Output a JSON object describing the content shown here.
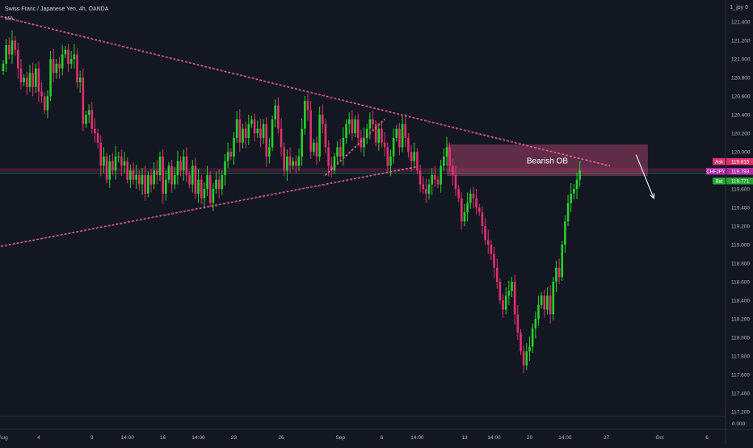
{
  "header": {
    "symbol_line": "Swiss Franc / Japanese Yen, 4h, OANDA",
    "indicator": "MA",
    "top_right": "1_jpy 0"
  },
  "colors": {
    "background": "#131722",
    "up": "#26d12a",
    "down": "#e0306e",
    "trendline": "#f06292",
    "zone": "#7a3556",
    "axis_text": "#b2b5be",
    "ask": "#e0306e",
    "symbol_badge": "#b02aa8",
    "bid": "#26a334"
  },
  "chart_data": {
    "type": "candlestick",
    "y_axis_ticks": [
      "121.400",
      "121.200",
      "121.000",
      "120.800",
      "120.600",
      "120.400",
      "120.200",
      "120.000",
      "119.800",
      "119.600",
      "119.400",
      "119.200",
      "119.000",
      "118.800",
      "118.600",
      "118.400",
      "118.200",
      "118.000",
      "117.800",
      "117.600",
      "117.400",
      "117.200"
    ],
    "y_range": [
      117.2,
      121.55
    ],
    "zero_label": "0.000",
    "x_axis_ticks": [
      {
        "label": "Aug",
        "bar": 0
      },
      {
        "label": "4",
        "bar": 12
      },
      {
        "label": "9",
        "bar": 30
      },
      {
        "label": "14:00",
        "bar": 42
      },
      {
        "label": "16",
        "bar": 54
      },
      {
        "label": "14:00",
        "bar": 66
      },
      {
        "label": "23",
        "bar": 78
      },
      {
        "label": "26",
        "bar": 94
      },
      {
        "label": "Sep",
        "bar": 114
      },
      {
        "label": "6",
        "bar": 128
      },
      {
        "label": "14:00",
        "bar": 140
      },
      {
        "label": "13",
        "bar": 156
      },
      {
        "label": "14:00",
        "bar": 166
      },
      {
        "label": "20",
        "bar": 178
      },
      {
        "label": "14:00",
        "bar": 190
      },
      {
        "label": "27",
        "bar": 204
      },
      {
        "label": "Oct",
        "bar": 222
      },
      {
        "label": "6",
        "bar": 238
      }
    ],
    "closes": [
      120.95,
      121.15,
      121.05,
      121.2,
      121.1,
      120.9,
      120.75,
      120.8,
      120.7,
      120.85,
      120.7,
      120.9,
      120.65,
      120.6,
      120.45,
      120.6,
      121.0,
      120.85,
      120.95,
      120.9,
      121.05,
      121.1,
      120.95,
      121.0,
      121.05,
      120.75,
      120.8,
      120.3,
      120.4,
      120.45,
      120.25,
      120.2,
      120.1,
      119.85,
      119.95,
      119.7,
      119.9,
      119.8,
      119.95,
      119.95,
      119.85,
      119.9,
      119.7,
      119.8,
      119.7,
      119.75,
      119.65,
      119.75,
      119.55,
      119.75,
      119.65,
      119.8,
      119.75,
      119.95,
      119.55,
      119.7,
      119.85,
      119.65,
      119.75,
      119.9,
      119.8,
      119.95,
      119.75,
      119.65,
      119.85,
      119.55,
      119.7,
      119.5,
      119.6,
      119.75,
      119.45,
      119.6,
      119.7,
      119.6,
      119.75,
      119.9,
      120.0,
      119.95,
      120.15,
      120.35,
      120.1,
      120.25,
      120.15,
      120.3,
      120.35,
      120.2,
      120.25,
      120.15,
      120.3,
      119.95,
      120.05,
      120.35,
      120.5,
      120.25,
      120.05,
      119.8,
      119.95,
      119.85,
      119.9,
      119.85,
      119.95,
      120.25,
      120.55,
      120.45,
      120.0,
      120.1,
      119.95,
      120.4,
      120.3,
      120.05,
      119.85,
      119.8,
      119.95,
      120.05,
      119.95,
      120.15,
      120.3,
      120.35,
      120.2,
      120.35,
      120.15,
      120.05,
      120.15,
      120.25,
      120.35,
      120.3,
      120.1,
      120.25,
      120.1,
      120.05,
      119.85,
      119.95,
      120.15,
      120.25,
      120.05,
      120.3,
      120.15,
      120.0,
      119.9,
      120.0,
      119.8,
      119.65,
      119.6,
      119.55,
      119.65,
      119.75,
      119.7,
      119.65,
      119.85,
      119.95,
      120.05,
      119.85,
      119.75,
      119.6,
      119.5,
      119.25,
      119.35,
      119.45,
      119.55,
      119.5,
      119.4,
      119.35,
      119.2,
      119.05,
      119.0,
      118.9,
      118.75,
      118.6,
      118.4,
      118.3,
      118.45,
      118.5,
      118.6,
      118.25,
      118.05,
      117.85,
      117.7,
      117.85,
      117.9,
      118.1,
      118.2,
      118.35,
      118.45,
      118.3,
      118.45,
      118.25,
      118.6,
      118.75,
      118.65,
      119.0,
      119.25,
      119.45,
      119.55,
      119.6,
      119.7,
      119.8
    ],
    "trendlines": [
      {
        "style": "dotted",
        "points": [
          [
            -6,
            121.5
          ],
          [
            205,
            119.85
          ]
        ]
      },
      {
        "style": "dotted",
        "points": [
          [
            -6,
            118.95
          ],
          [
            140,
            119.84
          ]
        ]
      },
      {
        "style": "dotted",
        "points": [
          [
            109,
            119.75
          ],
          [
            129,
            120.35
          ]
        ]
      }
    ],
    "zones": [
      {
        "label": "Bearish OB",
        "from_bar": 150,
        "to_bar": 218,
        "top": 120.08,
        "bottom": 119.74
      }
    ],
    "arrow": {
      "from": [
        214,
        119.97
      ],
      "to": [
        220,
        119.5
      ]
    },
    "price_lines": [
      119.815,
      119.793,
      119.771
    ],
    "price_tags": [
      {
        "name": "Ask",
        "value": "119.815"
      },
      {
        "name": "CHFJPY",
        "value": "119.793"
      },
      {
        "name": "Bid",
        "value": "119.771"
      }
    ]
  }
}
